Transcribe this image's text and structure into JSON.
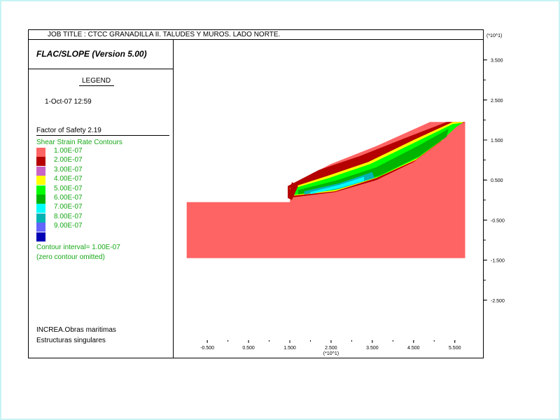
{
  "header": {
    "job_title": "JOB TITLE : CTCC GRANADILLA II. TALUDES Y MUROS. LADO NORTE.",
    "program": "FLAC/SLOPE (Version 5.00)"
  },
  "legend": {
    "title": "LEGEND",
    "date": "1-Oct-07  12:59",
    "factor_of_safety": "Factor of Safety  2.19",
    "heading": "Shear Strain Rate Contours",
    "items": [
      {
        "label": "1.00E-07",
        "color": "#ff6464"
      },
      {
        "label": "2.00E-07",
        "color": "#b40000"
      },
      {
        "label": "3.00E-07",
        "color": "#c864c8"
      },
      {
        "label": "4.00E-07",
        "color": "#ffff00"
      },
      {
        "label": "5.00E-07",
        "color": "#00ff00"
      },
      {
        "label": "6.00E-07",
        "color": "#00b400"
      },
      {
        "label": "7.00E-07",
        "color": "#00ffff"
      },
      {
        "label": "8.00E-07",
        "color": "#00b4b4"
      },
      {
        "label": "9.00E-07",
        "color": "#6464ff"
      },
      {
        "label": "",
        "color": "#0000b4"
      }
    ],
    "contour_interval": "Contour interval=  1.00E-07",
    "zero_omitted": "(zero contour omitted)"
  },
  "footer": {
    "line1": "INCREA.Obras maritimas",
    "line2": "Estructuras singulares"
  },
  "chart_data": {
    "type": "heatmap",
    "title": "Shear Strain Rate Contours",
    "x_axis_unit": "(*10^1)",
    "y_axis_unit": "(*10^1)",
    "x_ticks": [
      "-0.500",
      "0.500",
      "1.500",
      "2.500",
      "3.500",
      "4.500",
      "5.500"
    ],
    "y_ticks": [
      "3.500",
      "2.500",
      "1.500",
      "0.500",
      "-0.500",
      "-1.500",
      "-2.500"
    ],
    "x_tick_values": [
      -0.5,
      0.5,
      1.5,
      2.5,
      3.5,
      4.5,
      5.5
    ],
    "y_tick_values": [
      3.5,
      2.5,
      1.5,
      0.5,
      -0.5,
      -1.5,
      -2.5
    ],
    "xlim": [
      -1.3,
      6.2
    ],
    "ylim": [
      -3.5,
      4.0
    ],
    "grid": false,
    "slope_geometry": {
      "toe": [
        1.5,
        -0.05
      ],
      "crest": [
        5.75,
        1.95
      ],
      "model_x_range": [
        -1.0,
        5.75
      ],
      "model_bottom": -1.45
    },
    "factor_of_safety": 2.19,
    "contour_interval": 1e-07
  }
}
